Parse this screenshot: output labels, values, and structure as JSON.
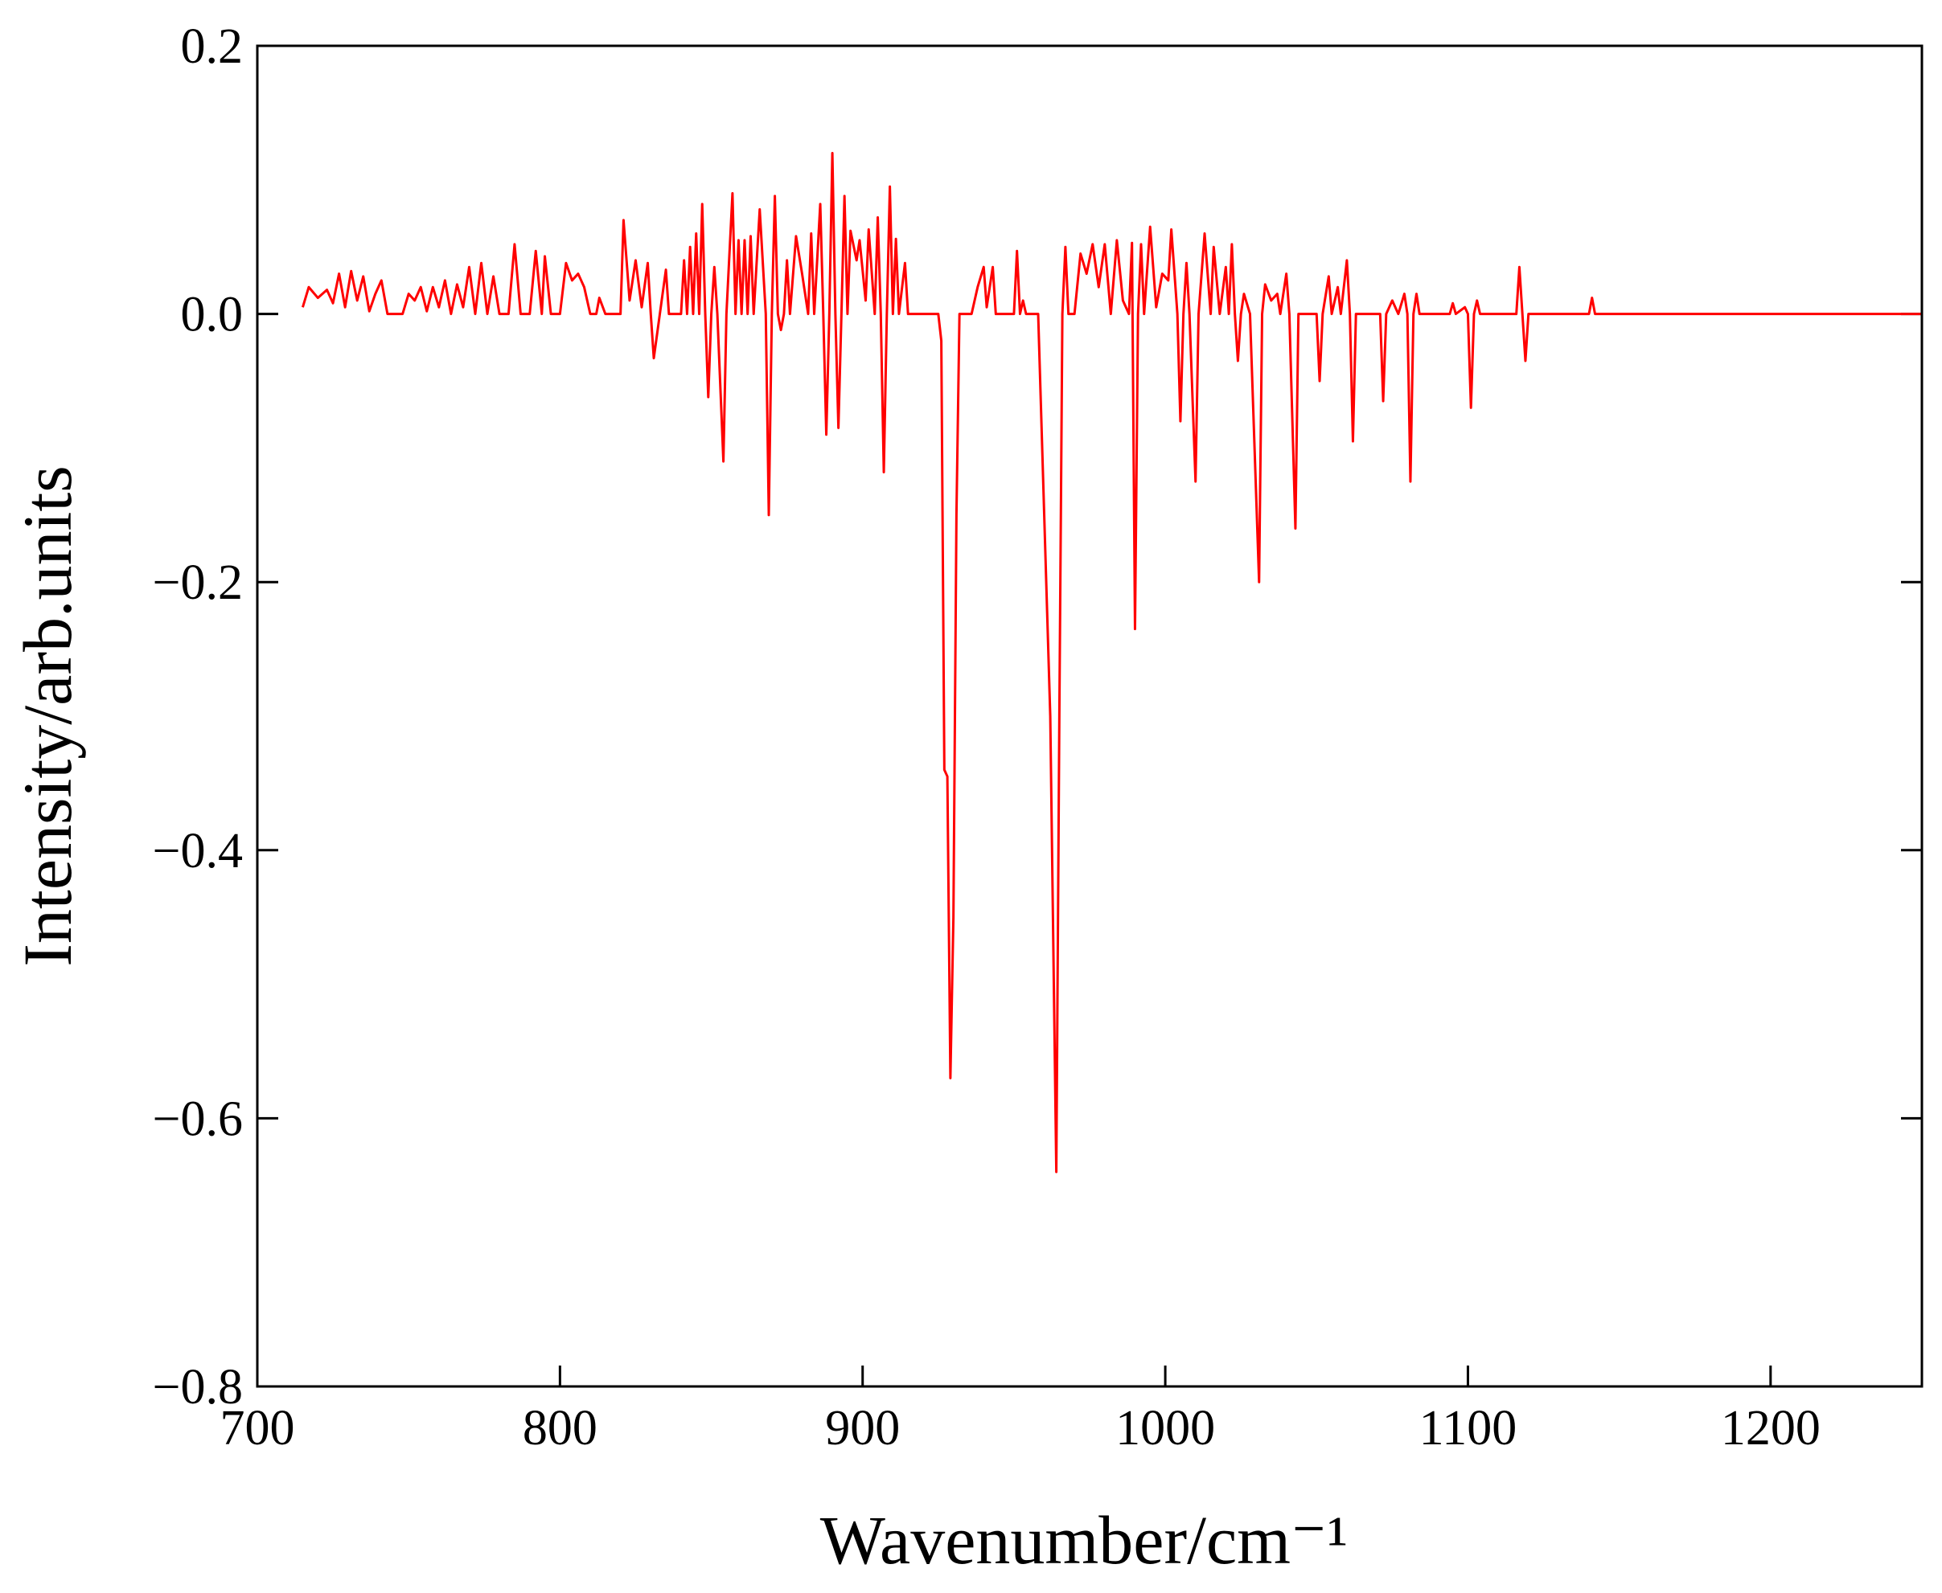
{
  "chart_data": {
    "type": "line",
    "xlabel": "Wavenumber/cm⁻¹",
    "ylabel": "Intensity/arb.units",
    "color": "#ff0000",
    "xlim": [
      700,
      1250
    ],
    "xticks": [
      700,
      800,
      900,
      1000,
      1100,
      1200
    ],
    "ylim": [
      -0.8,
      0.2
    ],
    "yticks": [
      {
        "value": -0.8,
        "label": "−0.8"
      },
      {
        "value": -0.6,
        "label": "−0.6"
      },
      {
        "value": -0.4,
        "label": "−0.4"
      },
      {
        "value": -0.2,
        "label": "−0.2"
      },
      {
        "value": 0,
        "label": "0.0"
      },
      0.2
    ],
    "x": [
      715,
      717,
      720,
      723,
      725,
      727,
      729,
      731,
      733,
      735,
      737,
      739,
      741,
      743,
      748,
      750,
      752,
      754,
      756,
      758,
      760,
      762,
      764,
      766,
      768,
      770,
      772,
      774,
      776,
      778,
      780,
      783,
      785,
      787,
      790,
      792,
      794,
      795,
      797,
      800,
      802,
      804,
      806,
      808,
      810,
      812,
      813,
      815,
      820,
      821,
      823,
      825,
      827,
      829,
      830,
      831,
      833,
      835,
      836,
      840,
      841,
      842,
      843,
      844,
      845,
      846,
      847,
      848,
      849,
      850,
      851,
      852,
      854,
      855,
      857,
      858,
      859,
      860,
      861,
      862,
      863,
      864,
      866,
      868,
      869,
      870,
      871,
      872,
      873,
      874,
      875,
      876,
      878,
      880,
      882,
      883,
      884,
      886,
      887,
      888,
      889,
      890,
      891,
      892,
      893,
      894,
      895,
      896,
      898,
      899,
      901,
      902,
      904,
      905,
      906,
      907,
      908,
      909,
      910,
      911,
      912,
      914,
      915,
      925,
      926,
      927,
      928,
      929,
      930,
      931,
      932,
      936,
      938,
      940,
      941,
      943,
      944,
      950,
      951,
      952,
      953,
      954,
      958,
      962,
      964,
      965,
      966,
      967,
      968,
      970,
      972,
      974,
      976,
      978,
      980,
      982,
      984,
      986,
      988,
      989,
      990,
      991,
      992,
      993,
      995,
      997,
      999,
      1001,
      1002,
      1004,
      1005,
      1006,
      1007,
      1008,
      1010,
      1011,
      1013,
      1015,
      1016,
      1018,
      1020,
      1021,
      1022,
      1023,
      1024,
      1025,
      1026,
      1028,
      1031,
      1032,
      1033,
      1035,
      1037,
      1038,
      1040,
      1041,
      1043,
      1044,
      1050,
      1051,
      1052,
      1054,
      1055,
      1057,
      1058,
      1060,
      1061,
      1062,
      1063,
      1071,
      1072,
      1073,
      1075,
      1077,
      1079,
      1080,
      1081,
      1082,
      1083,
      1084,
      1094,
      1095,
      1096,
      1099,
      1100,
      1101,
      1102,
      1103,
      1104,
      1116,
      1117,
      1118,
      1119,
      1120,
      1140,
      1141,
      1142,
      1250
    ],
    "values": [
      0.005,
      0.02,
      0.012,
      0.018,
      0.008,
      0.03,
      0.005,
      0.032,
      0.01,
      0.028,
      0.002,
      0.015,
      0.025,
      0,
      0,
      0.015,
      0.01,
      0.02,
      0.002,
      0.02,
      0.005,
      0.025,
      0,
      0.022,
      0.005,
      0.035,
      0,
      0.038,
      0,
      0.028,
      0,
      0,
      0.052,
      0,
      0,
      0.047,
      0,
      0.043,
      0,
      0,
      0.038,
      0.025,
      0.03,
      0.02,
      0,
      0,
      0.012,
      0,
      0,
      0.07,
      0.01,
      0.04,
      0.005,
      0.038,
      0,
      -0.033,
      0,
      0.033,
      0,
      0,
      0.04,
      0,
      0.05,
      0,
      0.06,
      0,
      0.082,
      0,
      -0.062,
      0,
      0.035,
      0,
      -0.11,
      0,
      0.09,
      0,
      0.055,
      0,
      0.055,
      0,
      0.058,
      0,
      0.078,
      0,
      -0.15,
      0,
      0.088,
      0,
      -0.012,
      0,
      0.04,
      0,
      0.058,
      0.03,
      0,
      0.06,
      0,
      0.082,
      0,
      -0.09,
      0,
      0.12,
      0,
      -0.085,
      0,
      0.088,
      0,
      0.062,
      0.04,
      0.055,
      0.01,
      0.063,
      0,
      0.072,
      0,
      -0.118,
      0,
      0.095,
      0,
      0.056,
      0,
      0.038,
      0,
      0,
      -0.02,
      -0.34,
      -0.345,
      -0.57,
      -0.45,
      -0.15,
      0,
      0,
      0.02,
      0.035,
      0.005,
      0.035,
      0,
      0,
      0.047,
      0,
      0.01,
      0,
      0,
      -0.3,
      -0.64,
      -0.3,
      0,
      0.05,
      0,
      0,
      0.045,
      0.03,
      0.052,
      0.02,
      0.052,
      0,
      0.055,
      0.01,
      0,
      0.053,
      -0.235,
      0,
      0.052,
      0,
      0.065,
      0.005,
      0.03,
      0.025,
      0.063,
      0,
      -0.08,
      0,
      0.038,
      0,
      -0.125,
      0,
      0.06,
      0,
      0.05,
      0,
      0.035,
      0,
      0.052,
      0,
      -0.035,
      0,
      0.015,
      0,
      -0.2,
      0,
      0.022,
      0.01,
      0.015,
      0,
      0.03,
      0,
      -0.16,
      0,
      0,
      -0.05,
      0,
      0.028,
      0,
      0.02,
      0,
      0.04,
      0,
      -0.095,
      0,
      0,
      -0.065,
      0,
      0.01,
      0,
      0.015,
      0,
      -0.125,
      0,
      0.015,
      0,
      0,
      0.008,
      0,
      0.005,
      0,
      -0.07,
      0,
      0.01,
      0,
      0,
      0.035,
      0,
      -0.035,
      0,
      0,
      0.012,
      0,
      0
    ]
  }
}
